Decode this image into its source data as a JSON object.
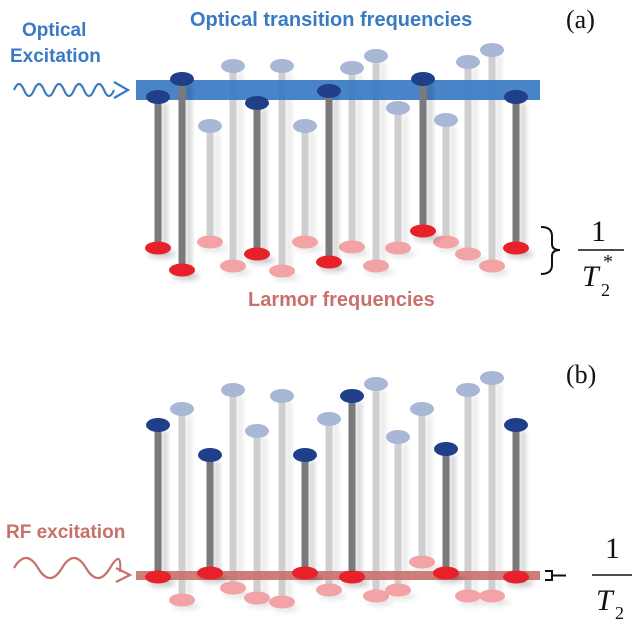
{
  "panel_a": {
    "letter": "(a)",
    "top_title": "Optical transition frequencies",
    "excitation_label_line1": "Optical",
    "excitation_label_line2": "Excitation",
    "bottom_title": "Larmor frequencies",
    "formula_numerator": "1",
    "formula_T": "T",
    "formula_sub": "2",
    "formula_sup": "*"
  },
  "panel_b": {
    "letter": "(b)",
    "excitation_label": "RF excitation",
    "formula_numerator": "1",
    "formula_T": "T",
    "formula_sub": "2"
  },
  "colors": {
    "optical_band": "#3a7ac4",
    "optical_text": "#3a7ac4",
    "rf_band": "#c9706a",
    "rf_text": "#c9706a",
    "dark_blue_dot": "#1f3f88",
    "light_blue_dot": "#a9b7d6",
    "red_dot": "#e8202a",
    "pink_dot": "#f3a2a6",
    "dark_rod": "#7a7a7a",
    "light_rod": "#cfcfcf"
  }
}
